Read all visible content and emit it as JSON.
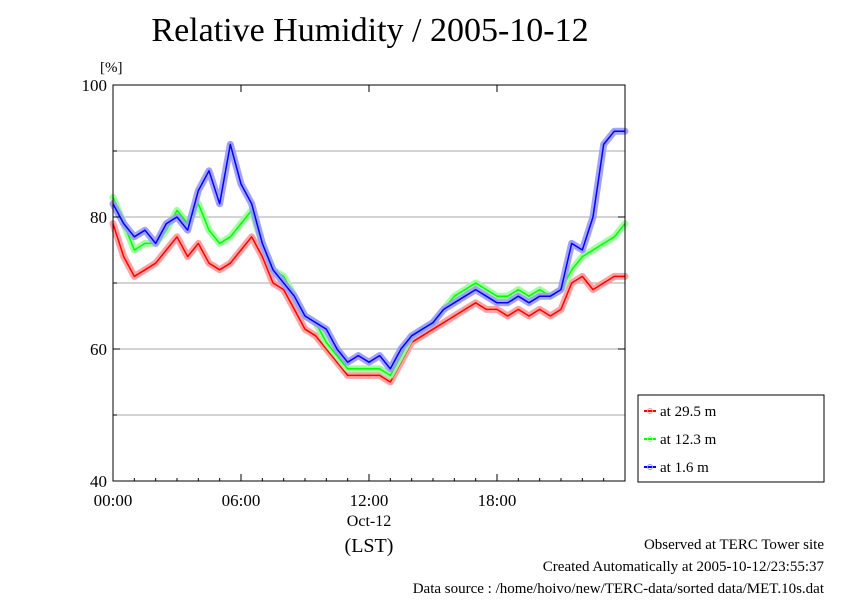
{
  "chart_data": {
    "type": "line",
    "title": "Relative Humidity / 2005-10-12",
    "ylabel": "[%]",
    "xlabel": "(LST)",
    "date_label": "Oct-12",
    "xlim": [
      0,
      24
    ],
    "ylim": [
      40,
      100
    ],
    "xticks": [
      "00:00",
      "06:00",
      "12:00",
      "18:00"
    ],
    "yticks": [
      "40",
      "60",
      "80",
      "100"
    ],
    "grid_y": [
      50,
      60,
      70,
      80,
      90
    ],
    "legend_position": "right",
    "x": [
      0,
      0.5,
      1,
      1.5,
      2,
      2.5,
      3,
      3.5,
      4,
      4.5,
      5,
      5.5,
      6,
      6.5,
      7,
      7.5,
      8,
      8.5,
      9,
      9.5,
      10,
      10.5,
      11,
      11.5,
      12,
      12.5,
      13,
      13.5,
      14,
      14.5,
      15,
      15.5,
      16,
      16.5,
      17,
      17.5,
      18,
      18.5,
      19,
      19.5,
      20,
      20.5,
      21,
      21.5,
      22,
      22.5,
      23,
      23.5,
      24
    ],
    "series": [
      {
        "name": "at 29.5 m",
        "color": "#ff0000",
        "values": [
          79,
          74,
          71,
          72,
          73,
          75,
          77,
          74,
          76,
          73,
          72,
          73,
          75,
          77,
          74,
          70,
          69,
          66,
          63,
          62,
          60,
          58,
          56,
          56,
          56,
          56,
          55,
          58,
          61,
          62,
          63,
          64,
          65,
          66,
          67,
          66,
          66,
          65,
          66,
          65,
          66,
          65,
          66,
          70,
          71,
          69,
          70,
          71,
          71
        ]
      },
      {
        "name": "at 12.3 m",
        "color": "#00ff00",
        "values": [
          83,
          79,
          75,
          76,
          76,
          78,
          81,
          79,
          82,
          78,
          76,
          77,
          79,
          81,
          76,
          72,
          71,
          68,
          65,
          64,
          61,
          59,
          57,
          57,
          57,
          57,
          56,
          59,
          62,
          63,
          64,
          66,
          68,
          69,
          70,
          69,
          68,
          68,
          69,
          68,
          69,
          68,
          69,
          72,
          74,
          75,
          76,
          77,
          79
        ]
      },
      {
        "name": "at 1.6 m",
        "color": "#0000ff",
        "values": [
          82,
          79,
          77,
          78,
          76,
          79,
          80,
          78,
          84,
          87,
          82,
          91,
          85,
          82,
          76,
          72,
          70,
          68,
          65,
          64,
          63,
          60,
          58,
          59,
          58,
          59,
          57,
          60,
          62,
          63,
          64,
          66,
          67,
          68,
          69,
          68,
          67,
          67,
          68,
          67,
          68,
          68,
          69,
          76,
          75,
          80,
          91,
          93,
          93
        ]
      }
    ]
  },
  "footer": {
    "line1": "Observed at TERC Tower site",
    "line2": "Created Automatically at 2005-10-12/23:55:37",
    "line3": "Data source : /home/hoivo/new/TERC-data/sorted  data/MET.10s.dat"
  }
}
